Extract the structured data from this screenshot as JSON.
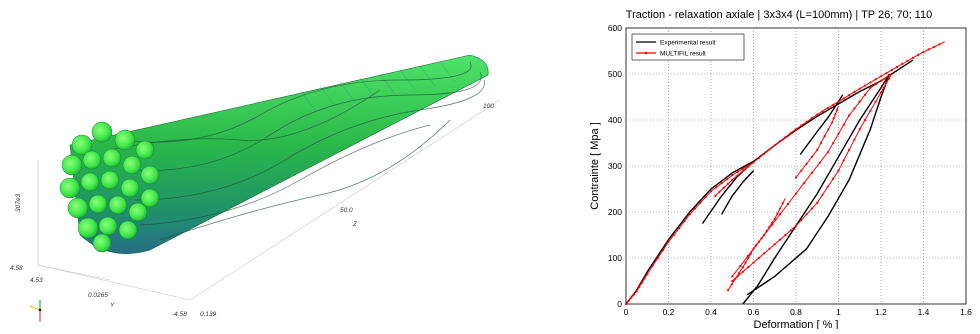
{
  "render3d": {
    "axis_labels": {
      "y": "Y",
      "z": "Z",
      "z_top": "100",
      "z_mid": "50.0",
      "z_bot": "0.139",
      "y_left": "4.53",
      "y_mid": "0.0265",
      "y_right": "-4.58",
      "x_mid": "307e3",
      "x_low": "4.58"
    }
  },
  "chart_data": {
    "type": "line",
    "title": "Traction - relaxation axiale | 3x3x4 (L=100mm) | TP 26; 70; 110",
    "xlabel": "Deformation [ % ]",
    "ylabel": "Contrainte [ Mpa ]",
    "xlim": [
      0,
      1.6
    ],
    "ylim": [
      0,
      600
    ],
    "xticks": [
      "0",
      "0.2",
      "0.4",
      "0.6",
      "0.8",
      "1",
      "1.2",
      "1.4",
      "1.6"
    ],
    "yticks": [
      "0",
      "100",
      "200",
      "300",
      "400",
      "500",
      "600"
    ],
    "grid": true,
    "legend_position": "top-left",
    "series": [
      {
        "name": "Experimental result",
        "color": "#000000",
        "marker": "none",
        "segments": [
          [
            [
              0,
              0
            ],
            [
              0.05,
              30
            ],
            [
              0.1,
              70
            ],
            [
              0.2,
              140
            ],
            [
              0.3,
              200
            ],
            [
              0.4,
              250
            ],
            [
              0.5,
              285
            ],
            [
              0.6,
              310
            ]
          ],
          [
            [
              0.36,
              175
            ],
            [
              0.45,
              235
            ],
            [
              0.52,
              275
            ],
            [
              0.6,
              310
            ],
            [
              0.7,
              345
            ],
            [
              0.8,
              378
            ],
            [
              0.9,
              408
            ],
            [
              1.0,
              435
            ],
            [
              1.1,
              462
            ],
            [
              1.2,
              485
            ],
            [
              1.25,
              500
            ],
            [
              1.3,
              515
            ],
            [
              1.35,
              530
            ]
          ],
          [
            [
              0.45,
              195
            ],
            [
              0.5,
              235
            ],
            [
              0.55,
              265
            ],
            [
              0.6,
              290
            ]
          ],
          [
            [
              0.82,
              325
            ],
            [
              0.9,
              375
            ],
            [
              0.95,
              405
            ],
            [
              1.0,
              440
            ],
            [
              1.02,
              455
            ]
          ],
          [
            [
              0.55,
              0
            ],
            [
              0.62,
              40
            ],
            [
              0.7,
              100
            ],
            [
              0.8,
              170
            ],
            [
              0.9,
              240
            ],
            [
              1.0,
              320
            ],
            [
              1.1,
              400
            ],
            [
              1.2,
              470
            ],
            [
              1.24,
              500
            ]
          ],
          [
            [
              0.57,
              20
            ],
            [
              0.7,
              60
            ],
            [
              0.85,
              120
            ],
            [
              0.95,
              190
            ],
            [
              1.05,
              270
            ],
            [
              1.15,
              380
            ],
            [
              1.2,
              450
            ],
            [
              1.24,
              500
            ]
          ]
        ]
      },
      {
        "name": "MULTIFIL result",
        "color": "#ff0000",
        "marker": "dot",
        "segments": [
          [
            [
              0,
              0
            ],
            [
              0.05,
              28
            ],
            [
              0.1,
              65
            ],
            [
              0.2,
              135
            ],
            [
              0.3,
              195
            ],
            [
              0.4,
              245
            ],
            [
              0.5,
              280
            ],
            [
              0.6,
              308
            ]
          ],
          [
            [
              0.42,
              235
            ],
            [
              0.5,
              270
            ],
            [
              0.6,
              308
            ],
            [
              0.7,
              345
            ],
            [
              0.8,
              380
            ],
            [
              0.9,
              412
            ],
            [
              1.0,
              440
            ],
            [
              1.1,
              468
            ],
            [
              1.2,
              495
            ],
            [
              1.3,
              522
            ],
            [
              1.4,
              548
            ],
            [
              1.5,
              570
            ]
          ],
          [
            [
              0.8,
              275
            ],
            [
              0.9,
              335
            ],
            [
              0.97,
              395
            ],
            [
              1.0,
              430
            ]
          ],
          [
            [
              0.48,
              30
            ],
            [
              0.55,
              80
            ],
            [
              0.6,
              120
            ],
            [
              0.65,
              150
            ],
            [
              0.7,
              185
            ],
            [
              0.75,
              230
            ]
          ],
          [
            [
              0.5,
              50
            ],
            [
              0.6,
              90
            ],
            [
              0.7,
              130
            ],
            [
              0.8,
              170
            ],
            [
              0.9,
              220
            ],
            [
              1.0,
              290
            ],
            [
              1.1,
              380
            ],
            [
              1.2,
              460
            ],
            [
              1.25,
              500
            ]
          ],
          [
            [
              0.5,
              60
            ],
            [
              0.65,
              150
            ],
            [
              0.8,
              240
            ],
            [
              0.95,
              330
            ],
            [
              1.05,
              410
            ],
            [
              1.15,
              470
            ],
            [
              1.25,
              500
            ]
          ]
        ]
      }
    ]
  }
}
